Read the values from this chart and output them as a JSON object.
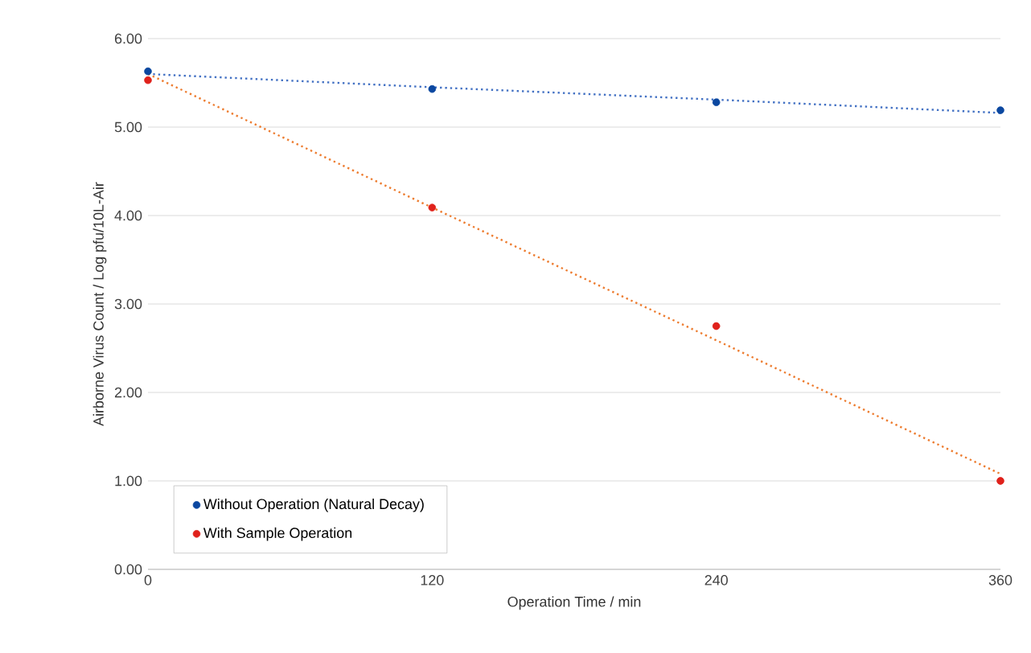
{
  "chart_data": {
    "type": "scatter",
    "xlabel": "Operation Time / min",
    "ylabel": "Airborne Virus Count /  Log pfu/10L-Air",
    "x": [
      0,
      120,
      240,
      360
    ],
    "series": [
      {
        "name": "Without Operation (Natural Decay)",
        "color": "#0b47a0",
        "values": [
          5.63,
          5.43,
          5.28,
          5.19
        ],
        "marker": "circle"
      },
      {
        "name": "With Sample Operation",
        "color": "#e0211b",
        "values": [
          5.53,
          4.09,
          2.75,
          1.0
        ],
        "marker": "circle"
      },
      {
        "type": "line",
        "color": "#4472c4",
        "values": [
          5.6,
          5.45,
          5.31,
          5.16
        ],
        "line_style": "dotted",
        "marker": "none"
      },
      {
        "type": "line",
        "color": "#ed7d31",
        "values": [
          5.6,
          4.09,
          2.59,
          1.08
        ],
        "line_style": "dotted",
        "marker": "none"
      }
    ],
    "xlim": [
      0,
      360
    ],
    "xticks": [
      0,
      120,
      240,
      360
    ],
    "ylim": [
      0,
      6
    ],
    "yticks": [
      {
        "value": 0,
        "label": "0.00"
      },
      {
        "value": 1,
        "label": "1.00"
      },
      {
        "value": 2,
        "label": "2.00"
      },
      {
        "value": 3,
        "label": "3.00"
      },
      {
        "value": 4,
        "label": "4.00"
      },
      {
        "value": 5,
        "label": "5.00"
      },
      {
        "value": 6,
        "label": "6.00"
      }
    ],
    "grid": "y",
    "legend": "bottom left"
  }
}
